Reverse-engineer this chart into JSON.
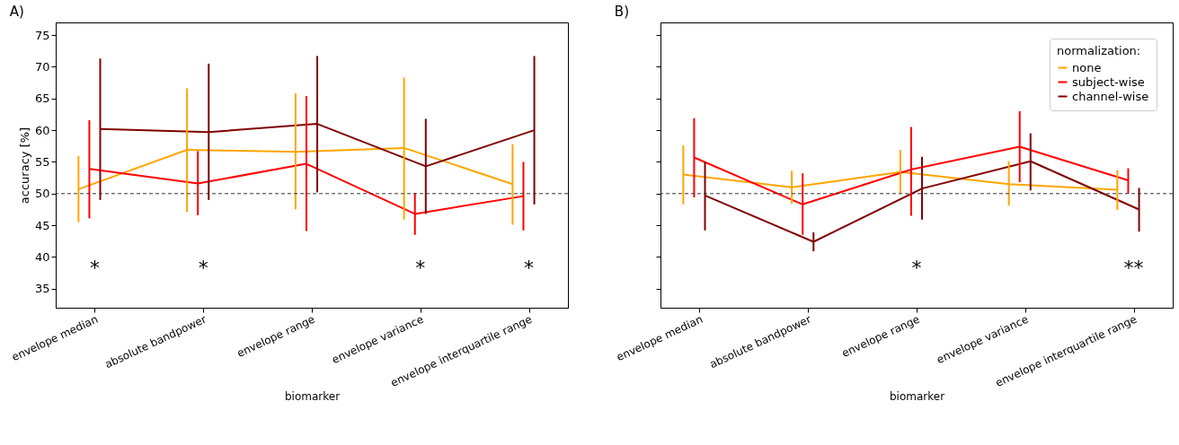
{
  "chart_data": [
    {
      "type": "line",
      "title": "A)",
      "xlabel": "biomarker",
      "ylabel": "accuracy [%]",
      "categories": [
        "envelope median",
        "absolute bandpower",
        "envelope range",
        "envelope variance",
        "envelope interquartile range"
      ],
      "series": [
        {
          "color": "#ffa500",
          "values": [
            50.7,
            56.9,
            56.6,
            57.2,
            51.5
          ],
          "errors": [
            [
              45.5,
              55.9
            ],
            [
              47.1,
              66.6
            ],
            [
              47.5,
              65.8
            ],
            [
              45.9,
              68.3
            ],
            [
              45.1,
              57.8
            ]
          ]
        },
        {
          "color": "#ff0000",
          "values": [
            53.9,
            51.6,
            54.7,
            46.8,
            49.6
          ],
          "errors": [
            [
              46.1,
              61.6
            ],
            [
              46.6,
              56.7
            ],
            [
              44.1,
              65.4
            ],
            [
              43.5,
              50.1
            ],
            [
              44.2,
              55.0
            ]
          ]
        },
        {
          "color": "#800000",
          "values": [
            60.2,
            59.7,
            61.0,
            54.3,
            60.0
          ],
          "errors": [
            [
              49.0,
              71.3
            ],
            [
              49.0,
              70.5
            ],
            [
              50.2,
              71.7
            ],
            [
              46.8,
              61.8
            ],
            [
              48.3,
              71.7
            ]
          ]
        }
      ],
      "ylim": [
        32,
        77
      ],
      "yticks": [
        35,
        40,
        45,
        50,
        55,
        60,
        65,
        70,
        75
      ],
      "ref_lines": [
        {
          "axis": "y",
          "value": 50,
          "color": "#333333",
          "line_style": "dashed"
        }
      ],
      "annotations": [
        "*",
        "*",
        "*",
        "*"
      ],
      "grid": false,
      "marker": "none",
      "line_style": "solid"
    },
    {
      "type": "line",
      "title": "B)",
      "xlabel": "biomarker",
      "legend_title": "normalization:",
      "categories": [
        "envelope median",
        "absolute bandpower",
        "envelope range",
        "envelope variance",
        "envelope interquartile range"
      ],
      "series": [
        {
          "name": "none",
          "color": "#ffa500",
          "values": [
            53.0,
            51.0,
            53.4,
            51.5,
            50.6
          ],
          "errors": [
            [
              48.3,
              57.6
            ],
            [
              48.4,
              53.6
            ],
            [
              50.0,
              56.9
            ],
            [
              48.1,
              55.1
            ],
            [
              47.4,
              53.7
            ]
          ]
        },
        {
          "name": "subject-wise",
          "color": "#ff0000",
          "values": [
            55.7,
            48.3,
            53.8,
            57.4,
            52.1
          ],
          "errors": [
            [
              49.4,
              61.9
            ],
            [
              43.5,
              53.2
            ],
            [
              46.5,
              60.5
            ],
            [
              51.8,
              63.0
            ],
            [
              50.0,
              54.0
            ]
          ]
        },
        {
          "name": "channel-wise",
          "color": "#800000",
          "values": [
            49.7,
            42.4,
            50.8,
            55.1,
            47.5
          ],
          "errors": [
            [
              44.2,
              55.0
            ],
            [
              40.9,
              43.9
            ],
            [
              45.9,
              55.8
            ],
            [
              50.5,
              59.5
            ],
            [
              44.0,
              50.9
            ]
          ]
        }
      ],
      "ylim": [
        32,
        77
      ],
      "yticks": [
        35,
        40,
        45,
        50,
        55,
        60,
        65,
        70,
        75
      ],
      "ref_lines": [
        {
          "axis": "y",
          "value": 50,
          "color": "#333333",
          "line_style": "dashed"
        }
      ],
      "annotations": [
        "*",
        "**"
      ],
      "grid": false,
      "legend": "top right",
      "tick_labels": "x",
      "marker": "none",
      "line_style": "solid"
    }
  ]
}
